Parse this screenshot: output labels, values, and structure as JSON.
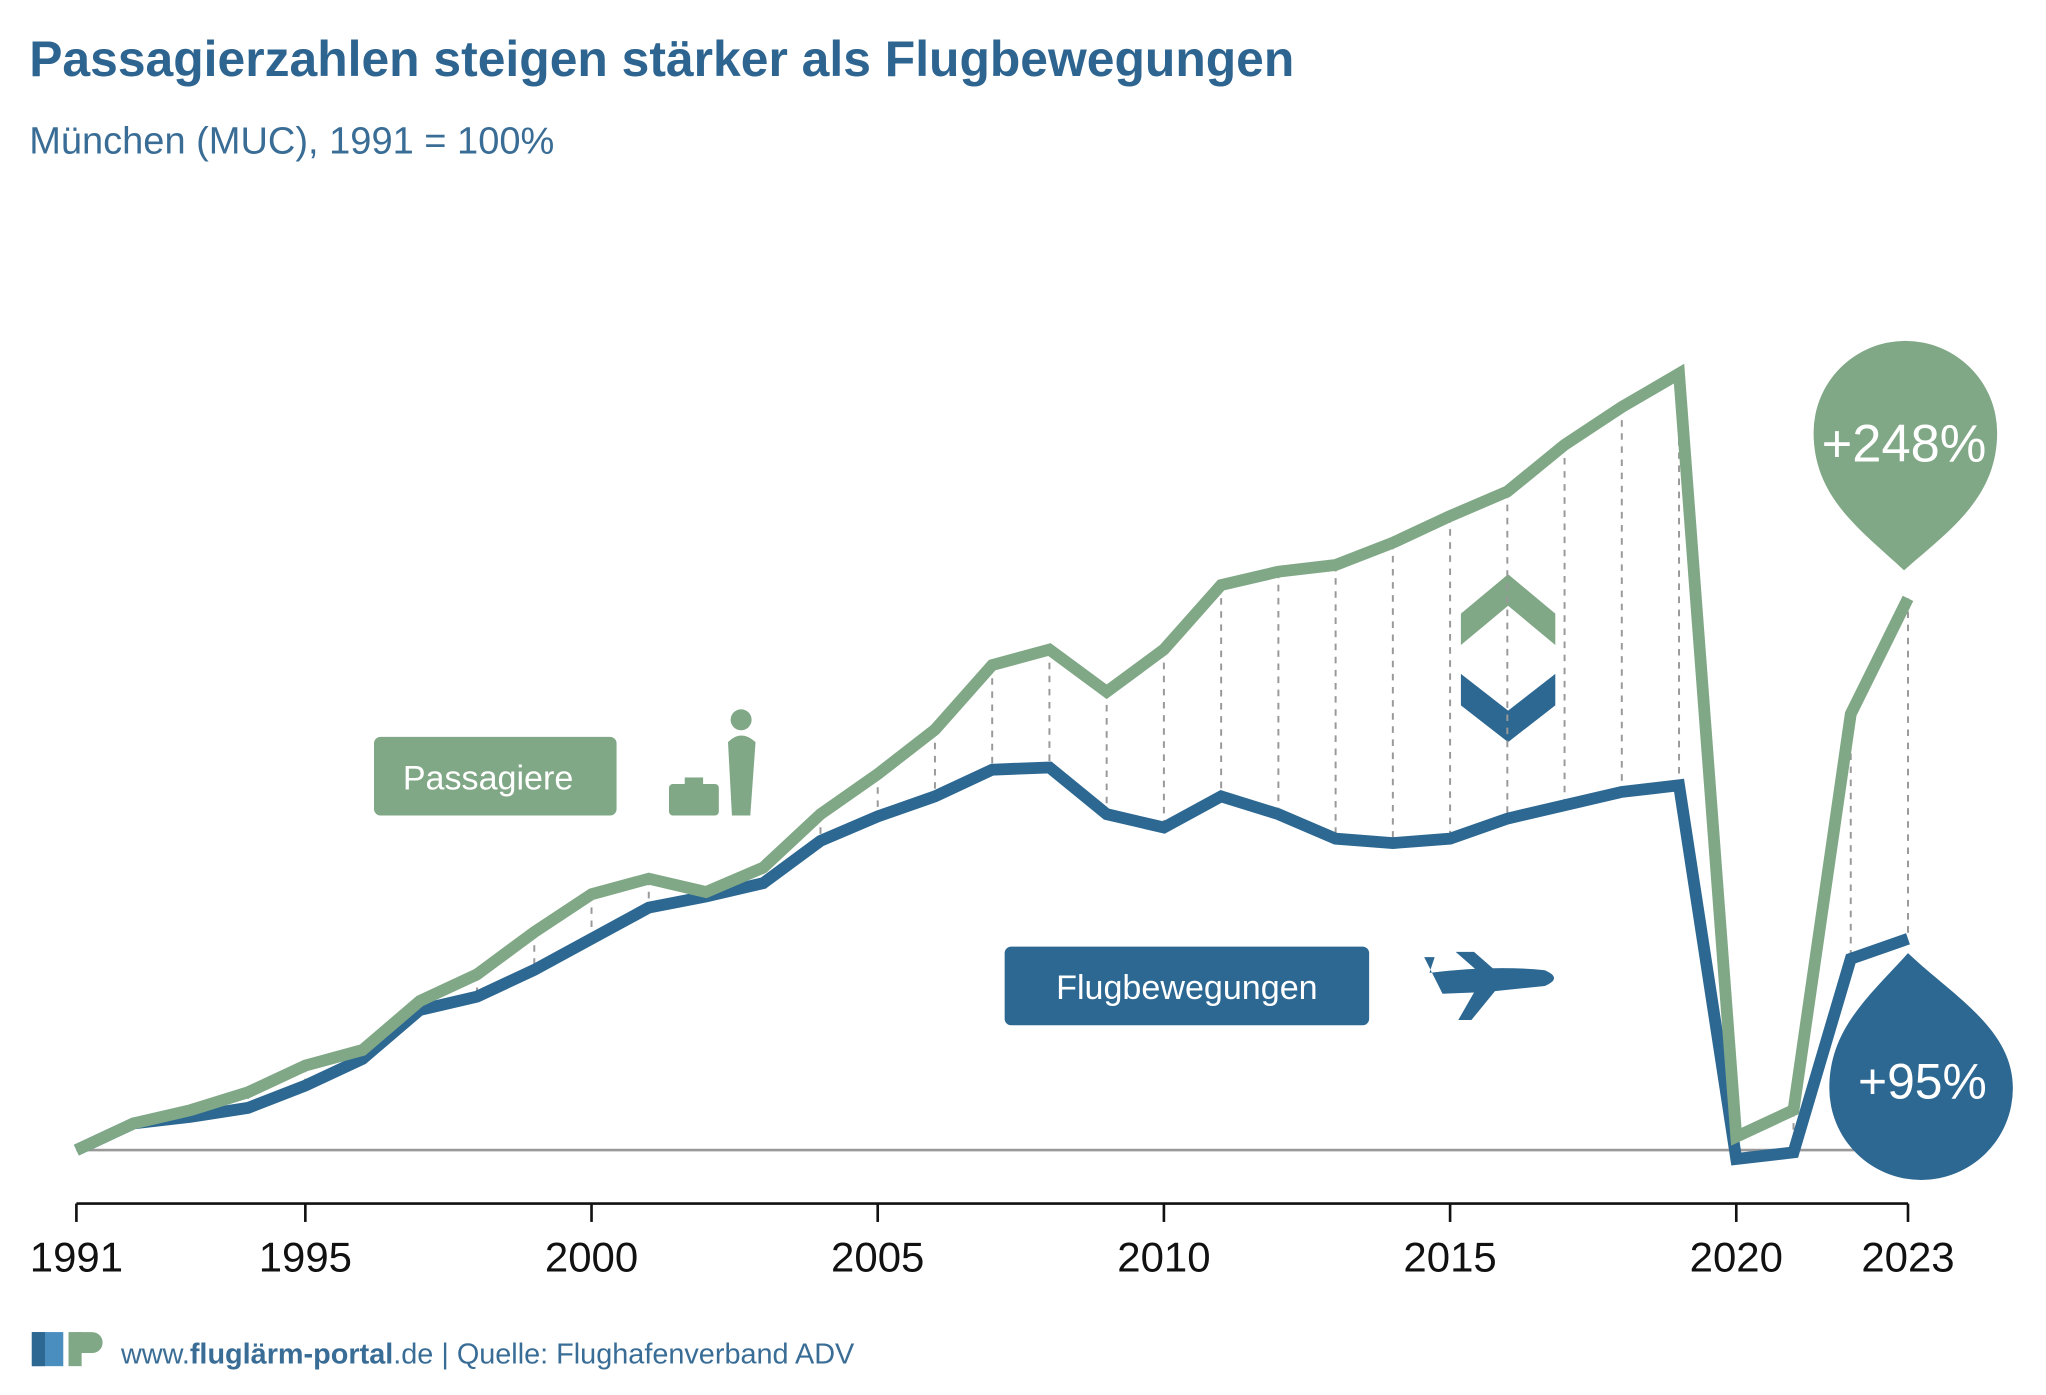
{
  "chart_data": {
    "type": "line",
    "title": "Passagierzahlen steigen stärker als Flugbewegungen",
    "subtitle": "München (MUC), 1991 = 100%",
    "x": [
      1991,
      1992,
      1993,
      1994,
      1995,
      1996,
      1997,
      1998,
      1999,
      2000,
      2001,
      2002,
      2003,
      2004,
      2005,
      2006,
      2007,
      2008,
      2009,
      2010,
      2011,
      2012,
      2013,
      2014,
      2015,
      2016,
      2017,
      2018,
      2019,
      2020,
      2021,
      2022,
      2023
    ],
    "xlim": [
      1991,
      2023
    ],
    "xticks": [
      1991,
      1995,
      2000,
      2005,
      2010,
      2015,
      2020,
      2023
    ],
    "series": [
      {
        "name": "Passagiere",
        "color": "#80a886",
        "values": [
          100,
          112,
          118,
          126,
          138,
          145,
          167,
          179,
          198,
          215,
          222,
          216,
          227,
          251,
          269,
          289,
          318,
          325,
          306,
          325,
          354,
          360,
          363,
          373,
          385,
          396,
          417,
          434,
          449,
          106,
          118,
          296,
          348
        ]
      },
      {
        "name": "Flugbewegungen",
        "color": "#2d6892",
        "values": [
          100,
          112,
          115,
          119,
          129,
          141,
          163,
          169,
          181,
          195,
          209,
          214,
          220,
          239,
          250,
          259,
          271,
          272,
          251,
          245,
          259,
          251,
          240,
          238,
          240,
          249,
          255,
          261,
          264,
          96,
          99,
          186,
          195
        ]
      }
    ],
    "annotations": [
      "+248%",
      "+95%"
    ],
    "footer": {
      "prefix": "www.",
      "bold": "fluglärm-portal",
      "suffix": ".de | Quelle: Flughafenverband ADV"
    }
  }
}
